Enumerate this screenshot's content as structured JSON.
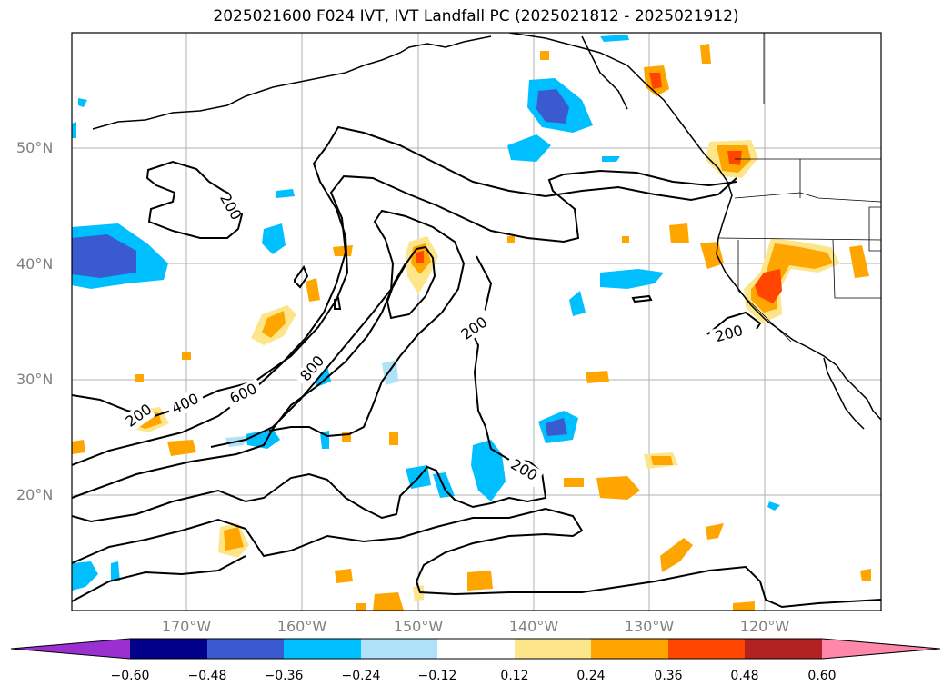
{
  "title": "2025021600 F024 IVT, IVT Landfall PC (2025021812 - 2025021912)",
  "map": {
    "lat_labels": [
      "50°N",
      "40°N",
      "30°N",
      "20°N"
    ],
    "lon_labels": [
      "170°W",
      "160°W",
      "150°W",
      "140°W",
      "130°W",
      "120°W"
    ],
    "contour_labels": [
      "200",
      "200",
      "200",
      "200",
      "200",
      "400",
      "600",
      "800"
    ]
  },
  "colorbar": {
    "ticks": [
      "−0.60",
      "−0.48",
      "−0.36",
      "−0.24",
      "−0.12",
      "0.12",
      "0.24",
      "0.36",
      "0.48",
      "0.60"
    ],
    "colors": [
      "#9b30d0",
      "#00008b",
      "#3a5bd0",
      "#00bfff",
      "#afe1f8",
      "#ffffff",
      "#fde68a",
      "#ffa500",
      "#ff4500",
      "#b22222",
      "#ff88aa"
    ]
  },
  "chart_data": {
    "type": "map",
    "title": "2025021600 F024 IVT, IVT Landfall PC (2025021812 - 2025021912)",
    "contour_levels": [
      200,
      400,
      600,
      800
    ],
    "colorbar_levels": [
      -0.6,
      -0.48,
      -0.36,
      -0.24,
      -0.12,
      0.12,
      0.24,
      0.36,
      0.48,
      0.6
    ],
    "lat_ticks": [
      50,
      40,
      30,
      20
    ],
    "lon_ticks": [
      -170,
      -160,
      -150,
      -140,
      -130,
      -120
    ]
  }
}
